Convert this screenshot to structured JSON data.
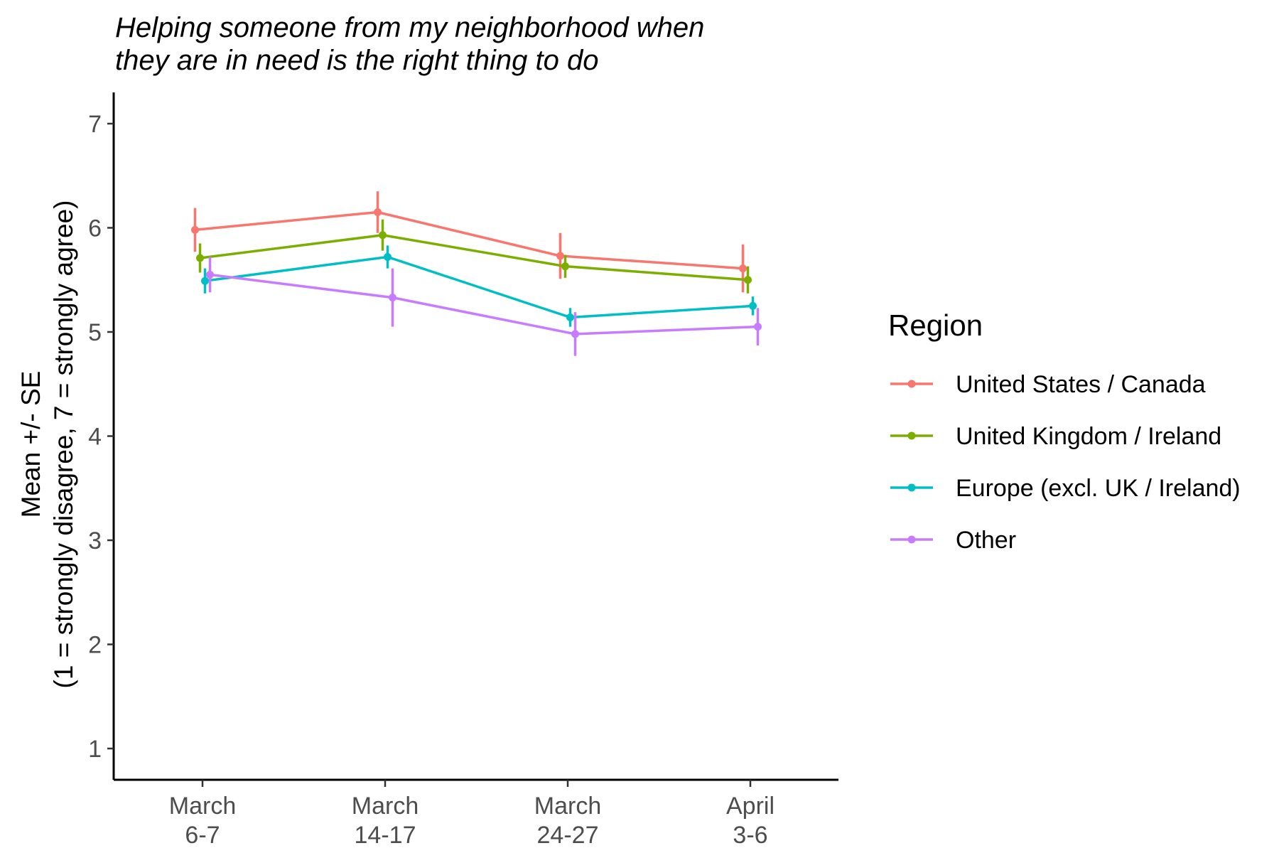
{
  "chart_data": {
    "type": "line",
    "title_lines": [
      "Helping someone from my neighborhood when",
      "they are in need is the right thing to do"
    ],
    "ylabel_lines": [
      "Mean +/- SE",
      "(1 = strongly disagree, 7 = strongly agree)"
    ],
    "xlabel": "",
    "categories": [
      [
        "March",
        "6-7"
      ],
      [
        "March",
        "14-17"
      ],
      [
        "March",
        "24-27"
      ],
      [
        "April",
        "3-6"
      ]
    ],
    "yticks": [
      1,
      2,
      3,
      4,
      5,
      6,
      7
    ],
    "ylim": [
      0.7,
      7.3
    ],
    "grid": false,
    "legend": {
      "title": "Region",
      "position": "right"
    },
    "series": [
      {
        "name": "United States / Canada",
        "color": "#F8766D",
        "values": [
          5.98,
          6.15,
          5.73,
          5.61
        ],
        "se": [
          0.21,
          0.2,
          0.22,
          0.23
        ]
      },
      {
        "name": "United Kingdom / Ireland",
        "color": "#7CAE00",
        "values": [
          5.71,
          5.93,
          5.63,
          5.5
        ],
        "se": [
          0.14,
          0.15,
          0.11,
          0.13
        ]
      },
      {
        "name": "Europe (excl. UK / Ireland)",
        "color": "#00BFC4",
        "values": [
          5.49,
          5.72,
          5.14,
          5.25
        ],
        "se": [
          0.12,
          0.11,
          0.09,
          0.09
        ]
      },
      {
        "name": "Other",
        "color": "#C77CFF",
        "values": [
          5.55,
          5.33,
          4.98,
          5.05
        ],
        "se": [
          0.17,
          0.28,
          0.21,
          0.18
        ]
      }
    ]
  }
}
